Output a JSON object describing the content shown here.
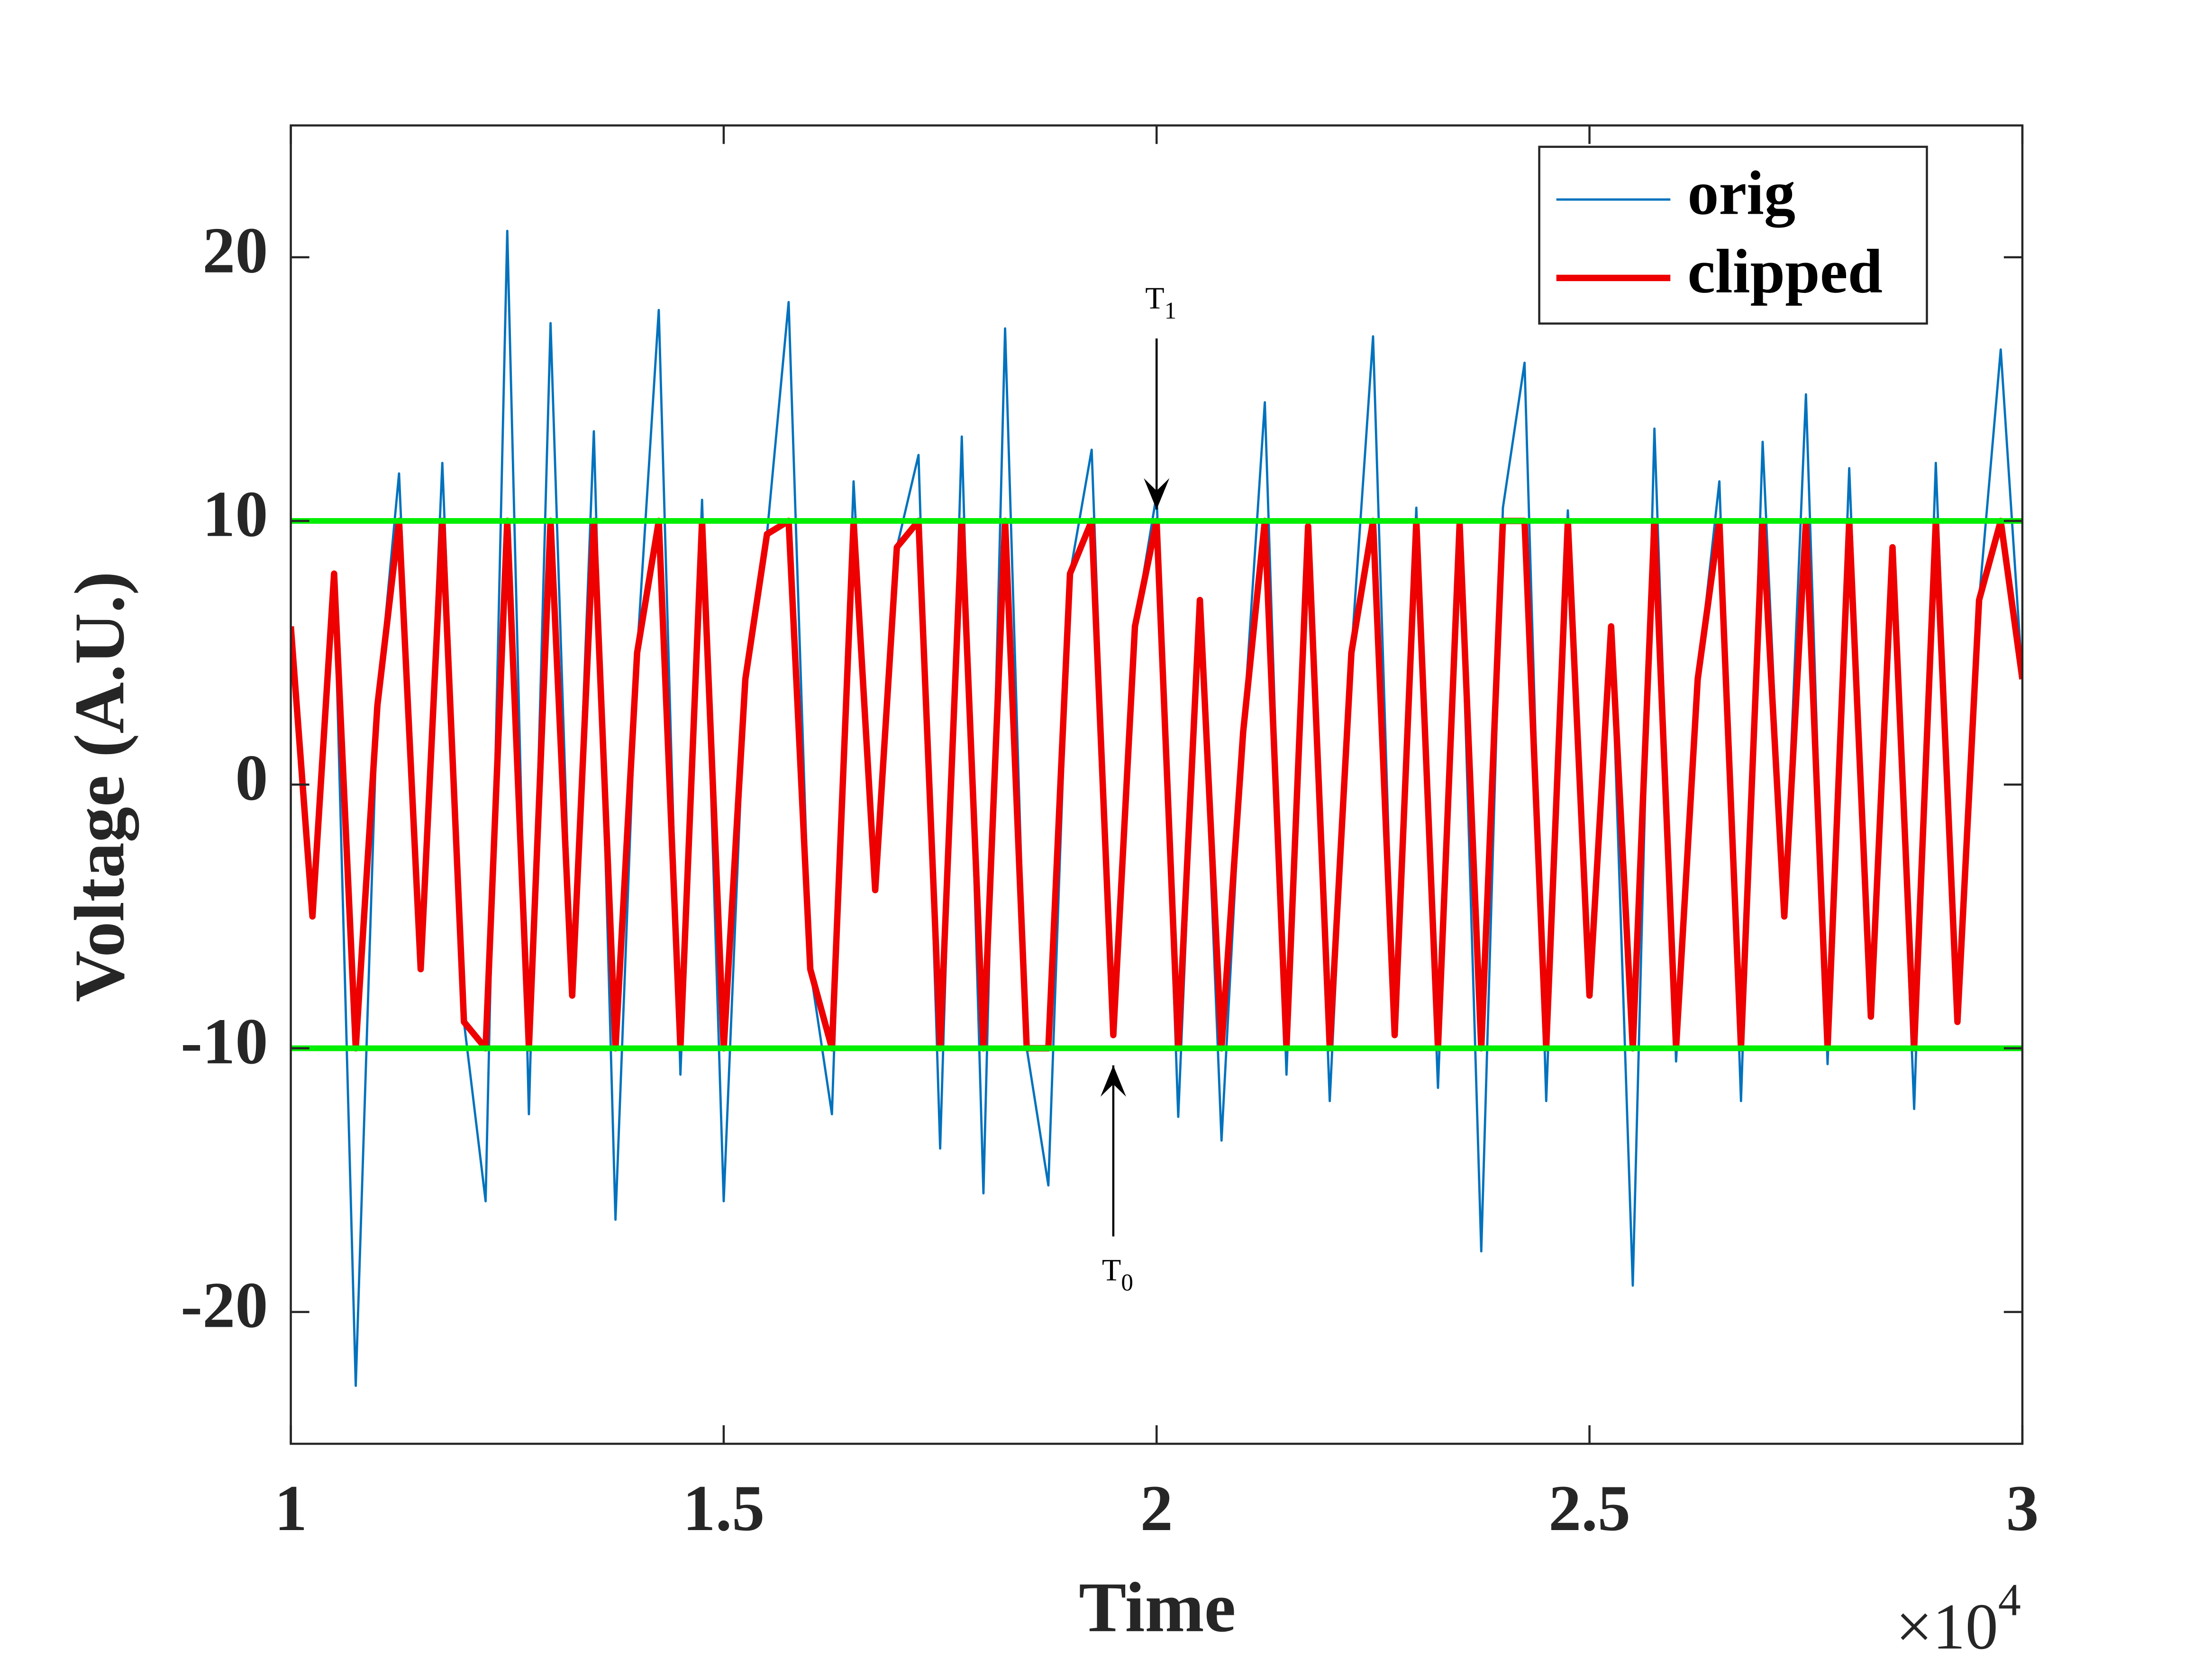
{
  "chart_data": {
    "type": "line",
    "xlabel": "Time",
    "ylabel": "Voltage (A.U.)",
    "x_multiplier": {
      "base": "×10",
      "exponent": "4"
    },
    "xlim": [
      10000,
      30000
    ],
    "ylim": [
      -25,
      25
    ],
    "xticks": [
      {
        "value": 10000,
        "label": "1"
      },
      {
        "value": 15000,
        "label": "1.5"
      },
      {
        "value": 20000,
        "label": "2"
      },
      {
        "value": 25000,
        "label": "2.5"
      },
      {
        "value": 30000,
        "label": "3"
      }
    ],
    "yticks": [
      -20,
      -10,
      0,
      10,
      20
    ],
    "legend": "upper right",
    "hlines": [
      10,
      -10
    ],
    "hline_color": "#00ee00",
    "annotations": [
      {
        "text": "T",
        "subscript": "1",
        "x": 20000,
        "y": 10,
        "direction": "down"
      },
      {
        "text": "T",
        "subscript": "0",
        "x": 19500,
        "y": -10,
        "direction": "up"
      }
    ],
    "x": [
      10000,
      10250,
      10500,
      10750,
      11000,
      11250,
      11500,
      11750,
      12000,
      12250,
      12500,
      12750,
      13000,
      13250,
      13500,
      13750,
      14000,
      14250,
      14500,
      14750,
      15000,
      15250,
      15500,
      15750,
      16000,
      16250,
      16500,
      16750,
      17000,
      17250,
      17500,
      17750,
      18000,
      18250,
      18500,
      18750,
      19000,
      19250,
      19500,
      19750,
      20000,
      20250,
      20500,
      20750,
      21000,
      21250,
      21500,
      21750,
      22000,
      22250,
      22500,
      22750,
      23000,
      23250,
      23500,
      23750,
      24000,
      24250,
      24500,
      24750,
      25000,
      25250,
      25500,
      25750,
      26000,
      26250,
      26500,
      26750,
      27000,
      27250,
      27500,
      27750,
      28000,
      28250,
      28500,
      28750,
      29000,
      29250,
      29500,
      29750,
      30000
    ],
    "series": [
      {
        "name": "orig",
        "color": "#0072bd",
        "values": [
          6,
          -5,
          8,
          -22.8,
          3,
          11.8,
          -7,
          12.2,
          -9,
          -15.8,
          21,
          -12.5,
          17.5,
          -8,
          13.4,
          -16.5,
          5,
          18,
          -11,
          10.8,
          -15.8,
          4,
          9.5,
          18.3,
          -7,
          -12.5,
          11.5,
          -4,
          9,
          12.5,
          -13.8,
          13.2,
          -15.5,
          17.3,
          -10,
          -15.2,
          8,
          12.7,
          -9.5,
          6,
          11,
          -12.6,
          7,
          -13.5,
          2,
          14.5,
          -11,
          9.8,
          -12,
          5,
          17,
          -9.5,
          10.5,
          -11.5,
          9.9,
          -17.7,
          10.5,
          16,
          -12,
          10.4,
          -8,
          6,
          -19,
          13.5,
          -10.5,
          4,
          11.5,
          -12,
          13,
          -5,
          14.8,
          -10.6,
          12,
          -8.8,
          9,
          -12.3,
          12.2,
          -9,
          7,
          16.5,
          4
        ]
      },
      {
        "name": "clipped",
        "color": "#ee0000",
        "values": [
          6,
          -5,
          8,
          -10,
          3,
          10,
          -7,
          10,
          -9,
          -10,
          10,
          -10,
          10,
          -8,
          10,
          -10,
          5,
          10,
          -10,
          10,
          -10,
          4,
          9.5,
          10,
          -7,
          -10,
          10,
          -4,
          9,
          10,
          -10,
          10,
          -10,
          10,
          -10,
          -10,
          8,
          10,
          -9.5,
          6,
          10,
          -10,
          7,
          -10,
          2,
          10,
          -10,
          9.8,
          -10,
          5,
          10,
          -9.5,
          10,
          -10,
          9.9,
          -10,
          10,
          10,
          -10,
          10,
          -8,
          6,
          -10,
          10,
          -10,
          4,
          10,
          -10,
          10,
          -5,
          10,
          -10,
          10,
          -8.8,
          9,
          -10,
          10,
          -9,
          7,
          10,
          4
        ]
      }
    ]
  }
}
